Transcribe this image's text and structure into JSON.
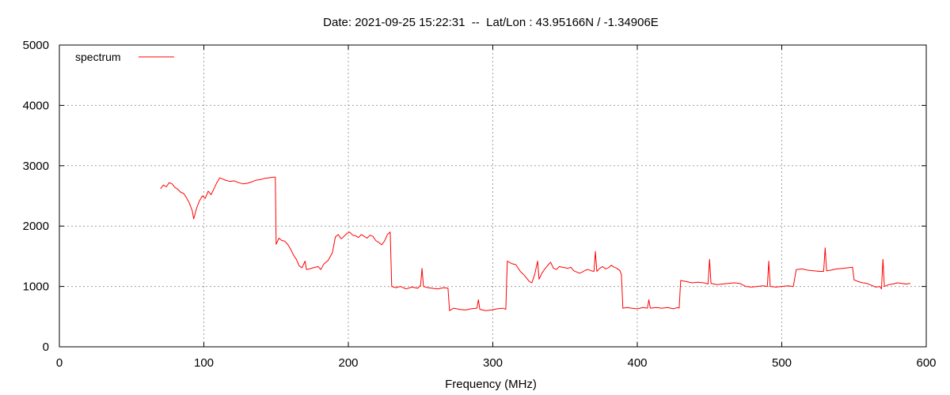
{
  "chart_data": {
    "type": "line",
    "title": "Date: 2021-09-25 15:22:31  --  Lat/Lon : 43.95166N / -1.34906E",
    "xlabel": "Frequency (MHz)",
    "ylabel": "",
    "xlim": [
      0,
      600
    ],
    "ylim": [
      0,
      5000
    ],
    "xticks": [
      0,
      100,
      200,
      300,
      400,
      500,
      600
    ],
    "yticks": [
      0,
      1000,
      2000,
      3000,
      4000,
      5000
    ],
    "grid": true,
    "legend_position": "top-left",
    "series": [
      {
        "name": "spectrum",
        "color": "#ff0000",
        "points": [
          [
            70,
            2620
          ],
          [
            72,
            2680
          ],
          [
            74,
            2650
          ],
          [
            76,
            2720
          ],
          [
            78,
            2700
          ],
          [
            80,
            2640
          ],
          [
            82,
            2610
          ],
          [
            84,
            2560
          ],
          [
            86,
            2540
          ],
          [
            88,
            2470
          ],
          [
            90,
            2380
          ],
          [
            92,
            2250
          ],
          [
            93,
            2120
          ],
          [
            95,
            2300
          ],
          [
            97,
            2420
          ],
          [
            99,
            2500
          ],
          [
            101,
            2460
          ],
          [
            103,
            2580
          ],
          [
            105,
            2520
          ],
          [
            107,
            2620
          ],
          [
            109,
            2720
          ],
          [
            111,
            2800
          ],
          [
            113,
            2780
          ],
          [
            115,
            2760
          ],
          [
            118,
            2740
          ],
          [
            121,
            2750
          ],
          [
            124,
            2720
          ],
          [
            127,
            2700
          ],
          [
            130,
            2710
          ],
          [
            133,
            2730
          ],
          [
            136,
            2760
          ],
          [
            139,
            2770
          ],
          [
            142,
            2790
          ],
          [
            145,
            2800
          ],
          [
            148,
            2810
          ],
          [
            149.5,
            2810
          ],
          [
            150,
            1700
          ],
          [
            152,
            1800
          ],
          [
            154,
            1760
          ],
          [
            156,
            1750
          ],
          [
            158,
            1700
          ],
          [
            160,
            1620
          ],
          [
            162,
            1520
          ],
          [
            164,
            1450
          ],
          [
            166,
            1340
          ],
          [
            168,
            1310
          ],
          [
            170,
            1420
          ],
          [
            171,
            1280
          ],
          [
            173,
            1290
          ],
          [
            176,
            1310
          ],
          [
            179,
            1330
          ],
          [
            181,
            1280
          ],
          [
            183,
            1370
          ],
          [
            186,
            1430
          ],
          [
            189,
            1560
          ],
          [
            191,
            1820
          ],
          [
            193,
            1860
          ],
          [
            195,
            1790
          ],
          [
            197,
            1830
          ],
          [
            199,
            1880
          ],
          [
            201,
            1900
          ],
          [
            203,
            1850
          ],
          [
            205,
            1840
          ],
          [
            207,
            1810
          ],
          [
            209,
            1860
          ],
          [
            211,
            1830
          ],
          [
            213,
            1800
          ],
          [
            215,
            1850
          ],
          [
            217,
            1830
          ],
          [
            219,
            1760
          ],
          [
            221,
            1730
          ],
          [
            223,
            1690
          ],
          [
            225,
            1750
          ],
          [
            227,
            1860
          ],
          [
            229,
            1900
          ],
          [
            230,
            1000
          ],
          [
            233,
            980
          ],
          [
            236,
            1000
          ],
          [
            240,
            960
          ],
          [
            244,
            990
          ],
          [
            248,
            970
          ],
          [
            250,
            1020
          ],
          [
            251,
            1300
          ],
          [
            252,
            1000
          ],
          [
            255,
            980
          ],
          [
            258,
            970
          ],
          [
            262,
            960
          ],
          [
            266,
            980
          ],
          [
            269,
            970
          ],
          [
            270,
            600
          ],
          [
            273,
            640
          ],
          [
            277,
            620
          ],
          [
            281,
            610
          ],
          [
            285,
            630
          ],
          [
            289,
            640
          ],
          [
            290,
            780
          ],
          [
            291,
            620
          ],
          [
            295,
            600
          ],
          [
            299,
            610
          ],
          [
            303,
            630
          ],
          [
            307,
            640
          ],
          [
            309,
            620
          ],
          [
            310,
            1420
          ],
          [
            313,
            1380
          ],
          [
            316,
            1360
          ],
          [
            319,
            1250
          ],
          [
            322,
            1180
          ],
          [
            325,
            1090
          ],
          [
            327,
            1060
          ],
          [
            329,
            1200
          ],
          [
            331,
            1420
          ],
          [
            332,
            1120
          ],
          [
            334,
            1220
          ],
          [
            336,
            1290
          ],
          [
            338,
            1350
          ],
          [
            340,
            1400
          ],
          [
            342,
            1300
          ],
          [
            344,
            1280
          ],
          [
            346,
            1330
          ],
          [
            348,
            1320
          ],
          [
            350,
            1310
          ],
          [
            352,
            1300
          ],
          [
            354,
            1320
          ],
          [
            356,
            1260
          ],
          [
            358,
            1240
          ],
          [
            360,
            1220
          ],
          [
            362,
            1240
          ],
          [
            364,
            1270
          ],
          [
            366,
            1280
          ],
          [
            368,
            1260
          ],
          [
            370,
            1250
          ],
          [
            371,
            1580
          ],
          [
            372,
            1250
          ],
          [
            374,
            1300
          ],
          [
            376,
            1330
          ],
          [
            378,
            1290
          ],
          [
            380,
            1310
          ],
          [
            382,
            1350
          ],
          [
            384,
            1320
          ],
          [
            386,
            1300
          ],
          [
            388,
            1260
          ],
          [
            389,
            1200
          ],
          [
            390,
            640
          ],
          [
            393,
            650
          ],
          [
            396,
            640
          ],
          [
            400,
            630
          ],
          [
            404,
            650
          ],
          [
            407,
            640
          ],
          [
            408,
            780
          ],
          [
            409,
            640
          ],
          [
            413,
            650
          ],
          [
            417,
            640
          ],
          [
            421,
            650
          ],
          [
            425,
            630
          ],
          [
            428,
            650
          ],
          [
            429,
            640
          ],
          [
            430,
            1100
          ],
          [
            434,
            1080
          ],
          [
            438,
            1060
          ],
          [
            442,
            1070
          ],
          [
            446,
            1060
          ],
          [
            449,
            1040
          ],
          [
            450,
            1450
          ],
          [
            451,
            1050
          ],
          [
            455,
            1030
          ],
          [
            459,
            1040
          ],
          [
            463,
            1050
          ],
          [
            467,
            1060
          ],
          [
            471,
            1050
          ],
          [
            475,
            1000
          ],
          [
            479,
            990
          ],
          [
            483,
            1000
          ],
          [
            487,
            1010
          ],
          [
            490,
            1000
          ],
          [
            491,
            1420
          ],
          [
            492,
            1000
          ],
          [
            496,
            990
          ],
          [
            500,
            1000
          ],
          [
            504,
            1010
          ],
          [
            508,
            1000
          ],
          [
            510,
            1280
          ],
          [
            514,
            1290
          ],
          [
            518,
            1270
          ],
          [
            522,
            1260
          ],
          [
            526,
            1250
          ],
          [
            529,
            1250
          ],
          [
            530,
            1640
          ],
          [
            531,
            1260
          ],
          [
            534,
            1270
          ],
          [
            538,
            1290
          ],
          [
            542,
            1300
          ],
          [
            546,
            1310
          ],
          [
            549,
            1320
          ],
          [
            550,
            1110
          ],
          [
            553,
            1080
          ],
          [
            556,
            1060
          ],
          [
            559,
            1050
          ],
          [
            562,
            1020
          ],
          [
            565,
            990
          ],
          [
            568,
            1000
          ],
          [
            569,
            960
          ],
          [
            570,
            1450
          ],
          [
            571,
            1000
          ],
          [
            574,
            1030
          ],
          [
            577,
            1040
          ],
          [
            580,
            1060
          ],
          [
            583,
            1050
          ],
          [
            586,
            1040
          ],
          [
            589,
            1050
          ]
        ]
      }
    ]
  }
}
